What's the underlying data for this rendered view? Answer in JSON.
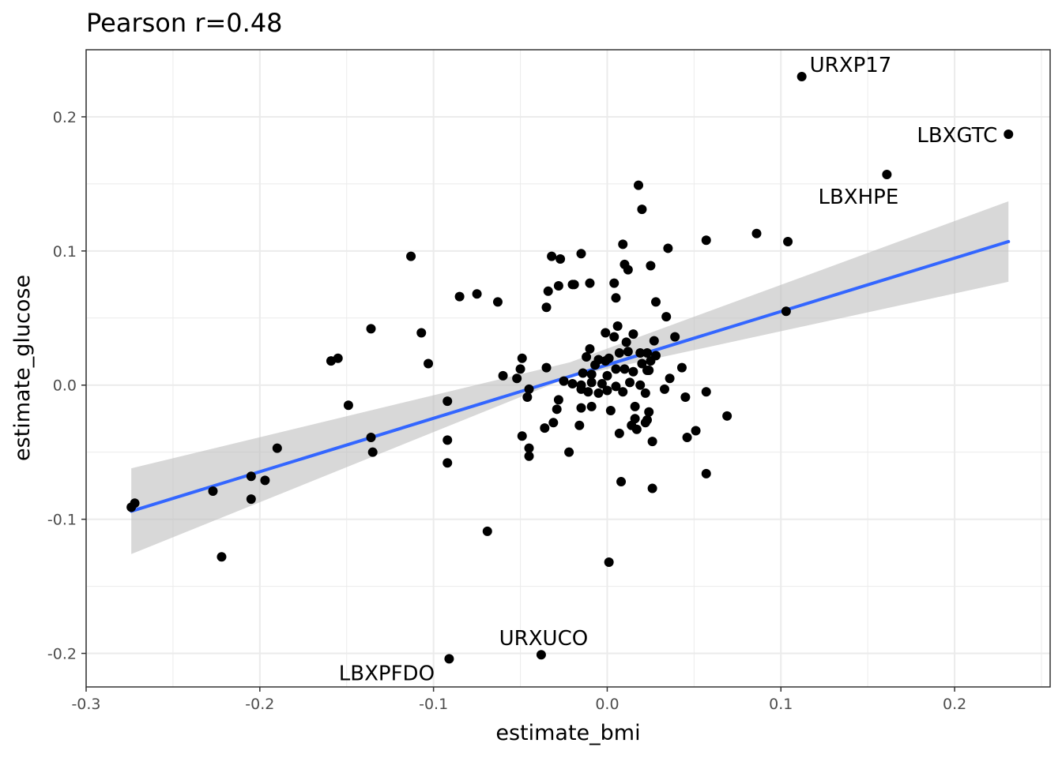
{
  "chart_data": {
    "type": "scatter",
    "title": "Pearson r=0.48",
    "xlabel": "estimate_bmi",
    "ylabel": "estimate_glucose",
    "xlim": [
      -0.3,
      0.255
    ],
    "ylim": [
      -0.225,
      0.25
    ],
    "grid": true,
    "x_ticks": [
      -0.3,
      -0.2,
      -0.1,
      0.0,
      0.1,
      0.2
    ],
    "x_tick_labels": [
      "-0.3",
      "-0.2",
      "-0.1",
      "0.0",
      "0.1",
      "0.2"
    ],
    "y_ticks": [
      -0.2,
      -0.1,
      0.0,
      0.1,
      0.2
    ],
    "y_tick_labels": [
      "-0.2",
      "-0.1",
      "0.0",
      "0.1",
      "0.2"
    ],
    "colors": {
      "points": "#000000",
      "fit_line": "#3366ff",
      "confidence_band": "#bebebe",
      "grid": "#ebebeb"
    },
    "fit": {
      "x_start": -0.274,
      "y_start": -0.094,
      "x_end": 0.231,
      "y_end": 0.107,
      "band_start": [
        -0.126,
        -0.062
      ],
      "band_mid": [
        0.006,
        0.017
      ],
      "band_end": [
        0.077,
        0.137
      ]
    },
    "labeled_points": [
      {
        "label": "URXP17",
        "x": 0.112,
        "y": 0.23
      },
      {
        "label": "LBXGTC",
        "x": 0.231,
        "y": 0.187
      },
      {
        "label": "LBXHPE",
        "x": 0.161,
        "y": 0.157
      },
      {
        "label": "URXUCO",
        "x": -0.038,
        "y": -0.201
      },
      {
        "label": "LBXPFDO",
        "x": -0.091,
        "y": -0.204
      }
    ],
    "points": [
      [
        0.018,
        0.149
      ],
      [
        0.02,
        0.131
      ],
      [
        -0.113,
        0.096
      ],
      [
        -0.032,
        0.096
      ],
      [
        -0.027,
        0.094
      ],
      [
        -0.015,
        0.098
      ],
      [
        0.009,
        0.105
      ],
      [
        0.057,
        0.108
      ],
      [
        0.086,
        0.113
      ],
      [
        0.104,
        0.107
      ],
      [
        0.035,
        0.102
      ],
      [
        0.01,
        0.09
      ],
      [
        0.025,
        0.089
      ],
      [
        0.012,
        0.086
      ],
      [
        0.004,
        0.076
      ],
      [
        -0.01,
        0.076
      ],
      [
        -0.019,
        0.075
      ],
      [
        -0.02,
        0.075
      ],
      [
        -0.028,
        0.074
      ],
      [
        -0.034,
        0.07
      ],
      [
        0.005,
        0.065
      ],
      [
        -0.085,
        0.066
      ],
      [
        -0.075,
        0.068
      ],
      [
        -0.063,
        0.062
      ],
      [
        -0.035,
        0.058
      ],
      [
        0.028,
        0.062
      ],
      [
        0.034,
        0.051
      ],
      [
        0.103,
        0.055
      ],
      [
        -0.136,
        0.042
      ],
      [
        -0.107,
        0.039
      ],
      [
        -0.103,
        0.016
      ],
      [
        -0.159,
        0.018
      ],
      [
        -0.155,
        0.02
      ],
      [
        0.006,
        0.044
      ],
      [
        -0.001,
        0.039
      ],
      [
        0.004,
        0.036
      ],
      [
        0.015,
        0.038
      ],
      [
        0.011,
        0.032
      ],
      [
        0.027,
        0.033
      ],
      [
        0.039,
        0.036
      ],
      [
        -0.01,
        0.027
      ],
      [
        0.007,
        0.024
      ],
      [
        0.012,
        0.025
      ],
      [
        0.019,
        0.024
      ],
      [
        0.023,
        0.024
      ],
      [
        0.028,
        0.022
      ],
      [
        -0.049,
        0.02
      ],
      [
        -0.012,
        0.021
      ],
      [
        -0.005,
        0.019
      ],
      [
        0.001,
        0.02
      ],
      [
        -0.001,
        0.018
      ],
      [
        0.02,
        0.016
      ],
      [
        0.025,
        0.018
      ],
      [
        0.043,
        0.013
      ],
      [
        -0.035,
        0.013
      ],
      [
        -0.05,
        0.012
      ],
      [
        -0.06,
        0.007
      ],
      [
        -0.052,
        0.005
      ],
      [
        -0.007,
        0.015
      ],
      [
        0.005,
        0.012
      ],
      [
        0.01,
        0.012
      ],
      [
        0.015,
        0.01
      ],
      [
        0.023,
        0.011
      ],
      [
        -0.014,
        0.009
      ],
      [
        -0.009,
        0.008
      ],
      [
        0.0,
        0.007
      ],
      [
        0.024,
        0.011
      ],
      [
        0.036,
        0.005
      ],
      [
        -0.025,
        0.003
      ],
      [
        -0.02,
        0.001
      ],
      [
        -0.015,
        0.0
      ],
      [
        -0.009,
        0.002
      ],
      [
        -0.003,
        0.001
      ],
      [
        0.005,
        -0.001
      ],
      [
        0.013,
        0.002
      ],
      [
        0.019,
        0.0
      ],
      [
        -0.045,
        -0.003
      ],
      [
        -0.046,
        -0.009
      ],
      [
        -0.015,
        -0.003
      ],
      [
        -0.011,
        -0.005
      ],
      [
        -0.005,
        -0.006
      ],
      [
        0.0,
        -0.004
      ],
      [
        0.009,
        -0.005
      ],
      [
        0.022,
        -0.006
      ],
      [
        0.033,
        -0.003
      ],
      [
        0.045,
        -0.009
      ],
      [
        0.057,
        -0.005
      ],
      [
        -0.028,
        -0.011
      ],
      [
        -0.015,
        -0.017
      ],
      [
        -0.009,
        -0.016
      ],
      [
        0.002,
        -0.019
      ],
      [
        0.016,
        -0.016
      ],
      [
        0.024,
        -0.02
      ],
      [
        -0.029,
        -0.018
      ],
      [
        -0.092,
        -0.012
      ],
      [
        -0.149,
        -0.015
      ],
      [
        0.069,
        -0.023
      ],
      [
        0.016,
        -0.025
      ],
      [
        0.023,
        -0.026
      ],
      [
        -0.031,
        -0.028
      ],
      [
        -0.036,
        -0.032
      ],
      [
        -0.016,
        -0.03
      ],
      [
        0.014,
        -0.03
      ],
      [
        0.017,
        -0.033
      ],
      [
        0.022,
        -0.028
      ],
      [
        0.051,
        -0.034
      ],
      [
        -0.049,
        -0.038
      ],
      [
        -0.136,
        -0.039
      ],
      [
        0.007,
        -0.036
      ],
      [
        0.026,
        -0.042
      ],
      [
        0.046,
        -0.039
      ],
      [
        -0.092,
        -0.041
      ],
      [
        -0.19,
        -0.047
      ],
      [
        -0.045,
        -0.047
      ],
      [
        -0.045,
        -0.053
      ],
      [
        -0.022,
        -0.05
      ],
      [
        -0.135,
        -0.05
      ],
      [
        -0.092,
        -0.058
      ],
      [
        0.057,
        -0.066
      ],
      [
        0.008,
        -0.072
      ],
      [
        0.026,
        -0.077
      ],
      [
        -0.205,
        -0.068
      ],
      [
        -0.197,
        -0.071
      ],
      [
        -0.227,
        -0.079
      ],
      [
        -0.205,
        -0.085
      ],
      [
        -0.272,
        -0.088
      ],
      [
        -0.274,
        -0.091
      ],
      [
        -0.069,
        -0.109
      ],
      [
        -0.222,
        -0.128
      ],
      [
        0.001,
        -0.132
      ]
    ]
  }
}
